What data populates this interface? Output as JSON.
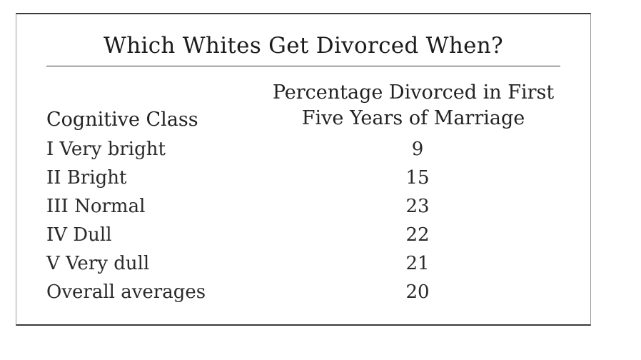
{
  "table": {
    "title": "Which Whites Get Divorced When?",
    "headers": {
      "class": "Cognitive Class",
      "pct_line1": "Percentage Divorced in First",
      "pct_line2": "Five Years of Marriage"
    },
    "rows": [
      {
        "class": "I Very bright",
        "pct": "9"
      },
      {
        "class": "II Bright",
        "pct": "15"
      },
      {
        "class": "III Normal",
        "pct": "23"
      },
      {
        "class": "IV Dull",
        "pct": "22"
      },
      {
        "class": "V Very dull",
        "pct": "21"
      },
      {
        "class": "Overall averages",
        "pct": "20"
      }
    ]
  }
}
